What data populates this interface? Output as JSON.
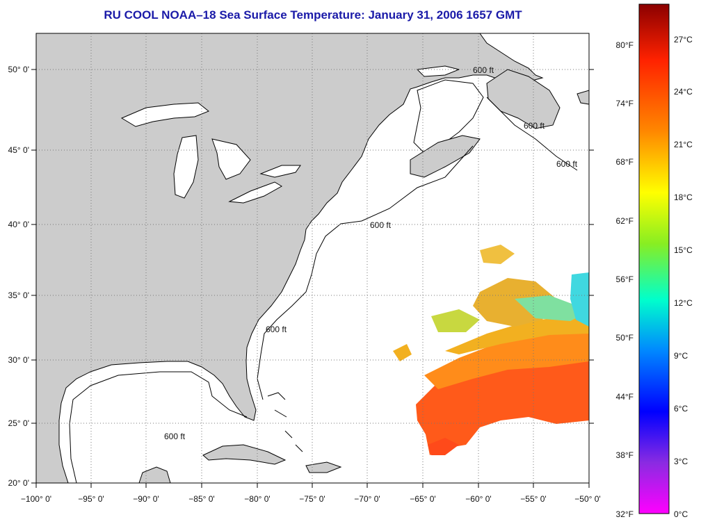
{
  "title": "RU COOL  NOAA–18  Sea Surface Temperature:  January 31, 2006 1657 GMT",
  "map": {
    "lon_range": [
      -100,
      -50
    ],
    "lat_range": [
      20,
      52.5
    ],
    "lon_labels": [
      "−100° 0'",
      "−95° 0'",
      "−90° 0'",
      "−85° 0'",
      "−80° 0'",
      "−75° 0'",
      "−70° 0'",
      "−65° 0'",
      "−60° 0'",
      "−55° 0'",
      "−50° 0'"
    ],
    "lat_labels": [
      "20° 0'",
      "25° 0'",
      "30° 0'",
      "35° 0'",
      "40° 0'",
      "45° 0'",
      "50° 0'"
    ],
    "contour_label": "600 ft",
    "land_color": "#cccccc",
    "ocean_color": "#ffffff"
  },
  "colorbar": {
    "fahrenheit_labels": [
      "80°F",
      "74°F",
      "68°F",
      "62°F",
      "56°F",
      "50°F",
      "44°F",
      "38°F",
      "32°F"
    ],
    "celsius_labels": [
      "27°C",
      "24°C",
      "21°C",
      "18°C",
      "15°C",
      "12°C",
      "9°C",
      "6°C",
      "3°C",
      "0°C"
    ],
    "gradient_colors": [
      "#8b0000",
      "#ff2200",
      "#ff8800",
      "#ffff00",
      "#88ee22",
      "#00ffcc",
      "#0088ff",
      "#0000ff",
      "#8a2be2",
      "#ff00ff"
    ]
  }
}
